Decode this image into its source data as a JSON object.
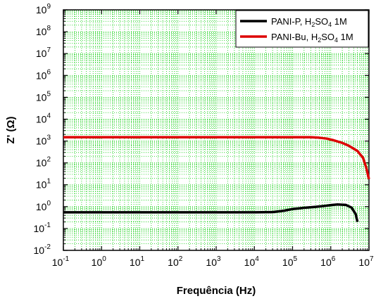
{
  "chart_data": {
    "type": "line",
    "xlabel": "Frequência (Hz)",
    "ylabel": "Z' (Ω)",
    "x_scale": "log",
    "y_scale": "log",
    "xlim": [
      0.1,
      10000000
    ],
    "ylim": [
      0.01,
      1000000000
    ],
    "x_ticks": [
      {
        "base": "10",
        "exp": "-1"
      },
      {
        "base": "10",
        "exp": "0"
      },
      {
        "base": "10",
        "exp": "1"
      },
      {
        "base": "10",
        "exp": "2"
      },
      {
        "base": "10",
        "exp": "3"
      },
      {
        "base": "10",
        "exp": "4"
      },
      {
        "base": "10",
        "exp": "5"
      },
      {
        "base": "10",
        "exp": "6"
      },
      {
        "base": "10",
        "exp": "7"
      }
    ],
    "y_ticks": [
      {
        "base": "10",
        "exp": "-2"
      },
      {
        "base": "10",
        "exp": "-1"
      },
      {
        "base": "10",
        "exp": "0"
      },
      {
        "base": "10",
        "exp": "1"
      },
      {
        "base": "10",
        "exp": "2"
      },
      {
        "base": "10",
        "exp": "3"
      },
      {
        "base": "10",
        "exp": "4"
      },
      {
        "base": "10",
        "exp": "5"
      },
      {
        "base": "10",
        "exp": "6"
      },
      {
        "base": "10",
        "exp": "7"
      },
      {
        "base": "10",
        "exp": "8"
      },
      {
        "base": "10",
        "exp": "9"
      }
    ],
    "grid": true,
    "grid_color": "#00cc00",
    "legend_position": "top-right",
    "series": [
      {
        "name_parts": [
          "PANI-P, H",
          "2",
          "SO",
          "4",
          " 1M"
        ],
        "color": "#000000",
        "x": [
          0.1,
          1,
          10,
          100,
          1000,
          10000,
          30000,
          60000,
          100000,
          200000,
          400000,
          700000,
          1000000,
          1500000,
          2500000,
          3500000,
          4500000,
          5000000
        ],
        "y": [
          0.55,
          0.55,
          0.55,
          0.55,
          0.55,
          0.55,
          0.56,
          0.65,
          0.78,
          0.88,
          0.98,
          1.08,
          1.18,
          1.25,
          1.2,
          0.9,
          0.45,
          0.2
        ]
      },
      {
        "name_parts": [
          "PANI-Bu, H",
          "2",
          "SO",
          "4",
          " 1M"
        ],
        "color": "#dd0000",
        "x": [
          0.1,
          1,
          10,
          100,
          1000,
          10000,
          100000,
          300000,
          500000,
          800000,
          1200000,
          2000000,
          3000000,
          5000000,
          7000000,
          8500000,
          10000000
        ],
        "y": [
          1500,
          1500,
          1500,
          1500,
          1500,
          1500,
          1500,
          1500,
          1420,
          1280,
          1080,
          820,
          600,
          350,
          170,
          60,
          18
        ]
      }
    ]
  }
}
